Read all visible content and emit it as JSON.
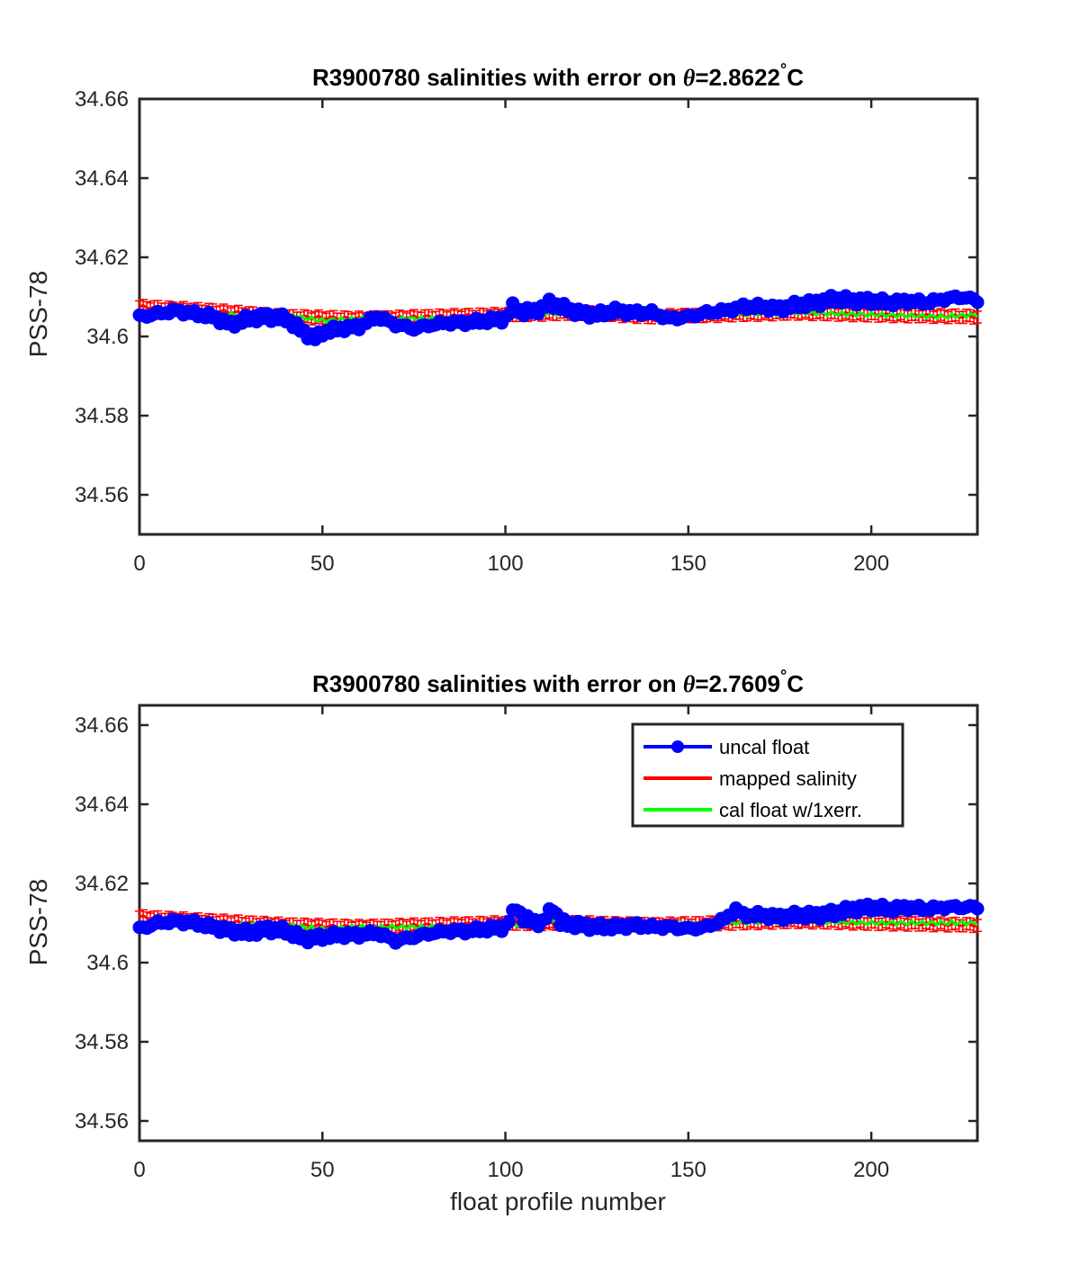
{
  "chart_data": [
    {
      "type": "line",
      "title_prefix": "R3900780 salinities with error on ",
      "title_theta": "θ",
      "title_value": "=2.8622",
      "title_degree": "°",
      "title_unit": "C",
      "xlabel": "",
      "ylabel": "PSS-78",
      "xlim": [
        0,
        229
      ],
      "ylim": [
        34.55,
        34.66
      ],
      "xticks": [
        "0",
        "50",
        "100",
        "150",
        "200"
      ],
      "yticks": [
        "34.56",
        "34.58",
        "34.6",
        "34.62",
        "34.64",
        "34.66"
      ],
      "legend": null,
      "series": [
        {
          "name": "uncal float",
          "color": "#0000ff",
          "x": [
            0,
            10,
            20,
            25,
            30,
            35,
            40,
            45,
            48,
            50,
            55,
            60,
            65,
            70,
            75,
            80,
            85,
            90,
            95,
            100,
            102,
            105,
            110,
            112,
            115,
            120,
            125,
            130,
            135,
            140,
            145,
            150,
            155,
            160,
            165,
            170,
            175,
            180,
            185,
            190,
            195,
            200,
            205,
            210,
            215,
            220,
            225,
            229
          ],
          "y": [
            34.605,
            34.6065,
            34.605,
            34.603,
            34.6045,
            34.605,
            34.6045,
            34.601,
            34.5995,
            34.601,
            34.602,
            34.6025,
            34.605,
            34.603,
            34.602,
            34.603,
            34.6035,
            34.6035,
            34.604,
            34.6045,
            34.6075,
            34.606,
            34.607,
            34.6085,
            34.6075,
            34.606,
            34.6055,
            34.6065,
            34.606,
            34.606,
            34.6045,
            34.605,
            34.606,
            34.6065,
            34.6075,
            34.6075,
            34.607,
            34.608,
            34.6085,
            34.6095,
            34.609,
            34.609,
            34.6085,
            34.609,
            34.6085,
            34.6095,
            34.61,
            34.609
          ]
        },
        {
          "name": "mapped salinity",
          "color": "#ff0000",
          "x": [
            0,
            20,
            40,
            60,
            80,
            100,
            120,
            140,
            160,
            180,
            200,
            229
          ],
          "y": [
            34.6075,
            34.6065,
            34.605,
            34.6045,
            34.605,
            34.6055,
            34.606,
            34.605,
            34.6055,
            34.606,
            34.6055,
            34.605
          ],
          "err": 0.0015
        },
        {
          "name": "cal float w/1xerr.",
          "color": "#00ff00",
          "x": [
            0,
            20,
            40,
            50,
            60,
            80,
            100,
            110,
            120,
            140,
            160,
            180,
            200,
            220,
            229
          ],
          "y": [
            34.606,
            34.6055,
            34.6055,
            34.604,
            34.6045,
            34.6045,
            34.605,
            34.606,
            34.6055,
            34.605,
            34.6055,
            34.606,
            34.6055,
            34.605,
            34.6055
          ]
        }
      ]
    },
    {
      "type": "line",
      "title_prefix": "R3900780 salinities with error on ",
      "title_theta": "θ",
      "title_value": "=2.7609",
      "title_degree": "°",
      "title_unit": "C",
      "xlabel": "float profile number",
      "ylabel": "PSS-78",
      "xlim": [
        0,
        229
      ],
      "ylim": [
        34.555,
        34.665
      ],
      "xticks": [
        "0",
        "50",
        "100",
        "150",
        "200"
      ],
      "yticks": [
        "34.56",
        "34.58",
        "34.6",
        "34.62",
        "34.64",
        "34.66"
      ],
      "legend": [
        "uncal float",
        "mapped salinity",
        "cal float w/1xerr."
      ],
      "series": [
        {
          "name": "uncal float",
          "color": "#0000ff",
          "x": [
            0,
            5,
            10,
            15,
            20,
            25,
            30,
            35,
            40,
            45,
            50,
            55,
            60,
            65,
            70,
            75,
            80,
            85,
            90,
            95,
            100,
            103,
            105,
            110,
            113,
            115,
            120,
            125,
            130,
            135,
            140,
            145,
            150,
            155,
            160,
            163,
            165,
            170,
            175,
            180,
            185,
            190,
            195,
            200,
            205,
            210,
            215,
            220,
            225,
            229
          ],
          "y": [
            34.6085,
            34.61,
            34.6105,
            34.61,
            34.609,
            34.608,
            34.6075,
            34.6085,
            34.608,
            34.606,
            34.6065,
            34.607,
            34.607,
            34.6075,
            34.6055,
            34.6065,
            34.6075,
            34.608,
            34.608,
            34.6085,
            34.609,
            34.614,
            34.611,
            34.61,
            34.614,
            34.61,
            34.6095,
            34.609,
            34.609,
            34.6095,
            34.609,
            34.609,
            34.6085,
            34.609,
            34.611,
            34.6135,
            34.612,
            34.612,
            34.6115,
            34.612,
            34.612,
            34.6125,
            34.6135,
            34.614,
            34.6135,
            34.614,
            34.6135,
            34.614,
            34.614,
            34.614
          ]
        },
        {
          "name": "mapped salinity",
          "color": "#ff0000",
          "x": [
            0,
            20,
            40,
            60,
            80,
            100,
            120,
            140,
            160,
            180,
            200,
            229
          ],
          "y": [
            34.6115,
            34.6105,
            34.6095,
            34.609,
            34.6095,
            34.61,
            34.61,
            34.6095,
            34.61,
            34.6105,
            34.61,
            34.6095
          ],
          "err": 0.0015
        },
        {
          "name": "cal float w/1xerr.",
          "color": "#00ff00",
          "x": [
            0,
            20,
            40,
            50,
            60,
            80,
            100,
            110,
            120,
            140,
            160,
            180,
            200,
            220,
            229
          ],
          "y": [
            34.61,
            34.6095,
            34.6095,
            34.6085,
            34.609,
            34.609,
            34.6095,
            34.6105,
            34.61,
            34.6095,
            34.61,
            34.6105,
            34.61,
            34.61,
            34.61
          ]
        }
      ]
    }
  ]
}
